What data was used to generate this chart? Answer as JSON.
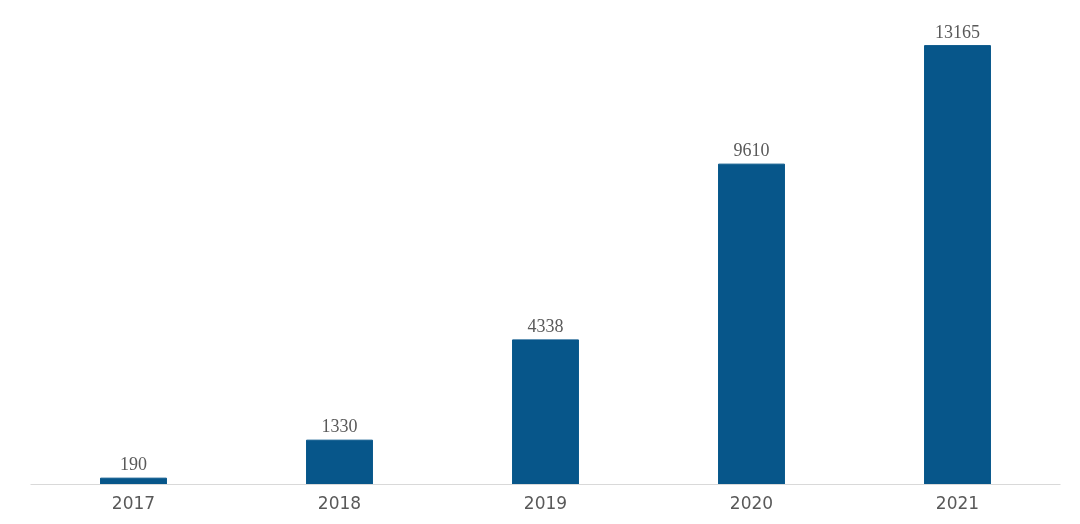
{
  "chart_data": {
    "type": "bar",
    "categories": [
      "2017",
      "2018",
      "2019",
      "2020",
      "2021"
    ],
    "values": [
      190,
      1330,
      4338,
      9610,
      13165
    ],
    "color": "#07568a",
    "data_labels": true,
    "grid": false
  }
}
